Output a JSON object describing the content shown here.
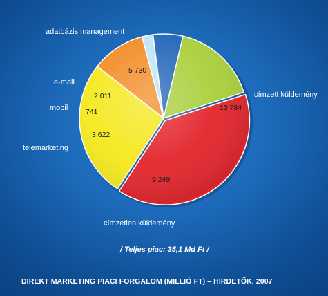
{
  "chart_data": {
    "type": "pie",
    "title": "DIREKT MARKETING PIACI FORGALOM (MILLIÓ FT) – HIRDETŐK, 2007",
    "subtitle": "/ Teljes piac: 35,1 Md Ft /",
    "slices": [
      {
        "label": "címzett küldemény",
        "value": 13784,
        "value_label": "13 784",
        "color": "#e3242b"
      },
      {
        "label": "címzetlen küldemény",
        "value": 9249,
        "value_label": "9 249",
        "color": "#f5e81c"
      },
      {
        "label": "telemarketing",
        "value": 3622,
        "value_label": "3 622",
        "color": "#f28a23"
      },
      {
        "label": "mobil",
        "value": 741,
        "value_label": "741",
        "color": "#bfe4f7"
      },
      {
        "label": "e-mail",
        "value": 2011,
        "value_label": "2 011",
        "color": "#1f64b8"
      },
      {
        "label": "adatbázis management",
        "value": 5730,
        "value_label": "5 730",
        "color": "#a9cf3a"
      }
    ]
  }
}
